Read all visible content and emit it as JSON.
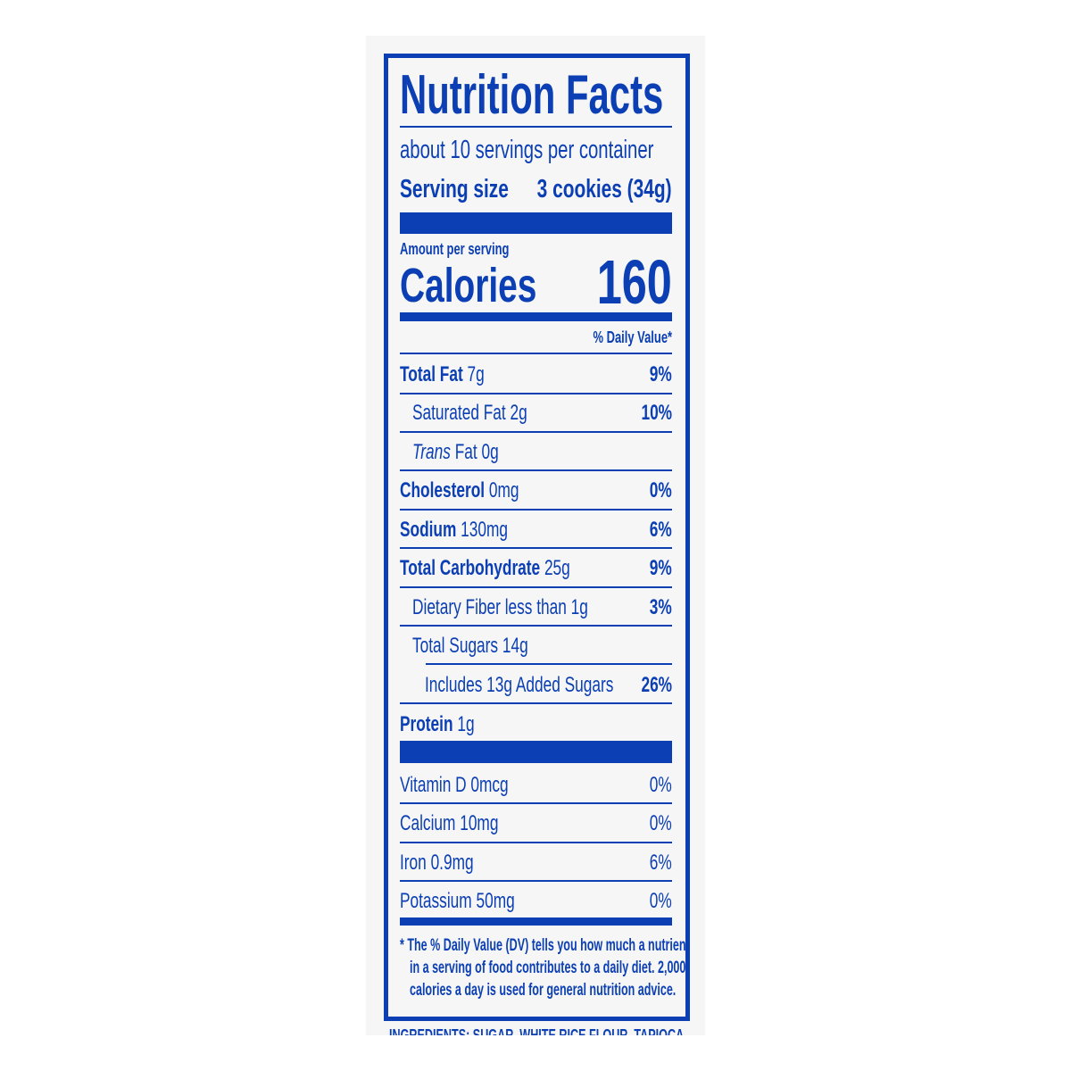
{
  "title": "Nutrition Facts",
  "servings_per_container": "about 10 servings per container",
  "serving_size": {
    "label": "Serving size",
    "value": "3 cookies (34g)"
  },
  "amount_per_serving": "Amount per serving",
  "calories": {
    "label": "Calories",
    "value": "160"
  },
  "daily_value_header": "% Daily Value*",
  "nutrients": [
    {
      "name": "Total Fat",
      "amount": "7g",
      "dv": "9%"
    },
    {
      "name": "Saturated Fat",
      "amount": "2g",
      "dv": "10%"
    },
    {
      "name": "Trans",
      "name_rest": "Fat 0g",
      "dv": ""
    },
    {
      "name": "Cholesterol",
      "amount": "0mg",
      "dv": "0%"
    },
    {
      "name": "Sodium",
      "amount": "130mg",
      "dv": "6%"
    },
    {
      "name": "Total Carbohydrate",
      "amount": "25g",
      "dv": "9%"
    },
    {
      "name": "Dietary Fiber less than 1g",
      "dv": "3%"
    },
    {
      "name": "Total Sugars 14g",
      "dv": ""
    },
    {
      "name": "Includes 13g Added Sugars",
      "dv": "26%"
    },
    {
      "name": "Protein",
      "amount": "1g",
      "dv": ""
    }
  ],
  "vitamins": [
    {
      "name": "Vitamin D 0mcg",
      "dv": "0%"
    },
    {
      "name": "Calcium 10mg",
      "dv": "0%"
    },
    {
      "name": "Iron 0.9mg",
      "dv": "6%"
    },
    {
      "name": "Potassium 50mg",
      "dv": "0%"
    }
  ],
  "footnote": [
    "* The % Daily Value (DV) tells you how much a nutrient",
    "in a serving of food contributes to a daily diet. 2,000",
    "calories a day is used for general nutrition advice."
  ],
  "ingredients_partial": "INGREDIENTS: SUGAR, WHITE RICE FLOUR, TAPIOCA",
  "colors": {
    "label_blue": "#0b3fb3",
    "background": "#f6f6f6"
  }
}
